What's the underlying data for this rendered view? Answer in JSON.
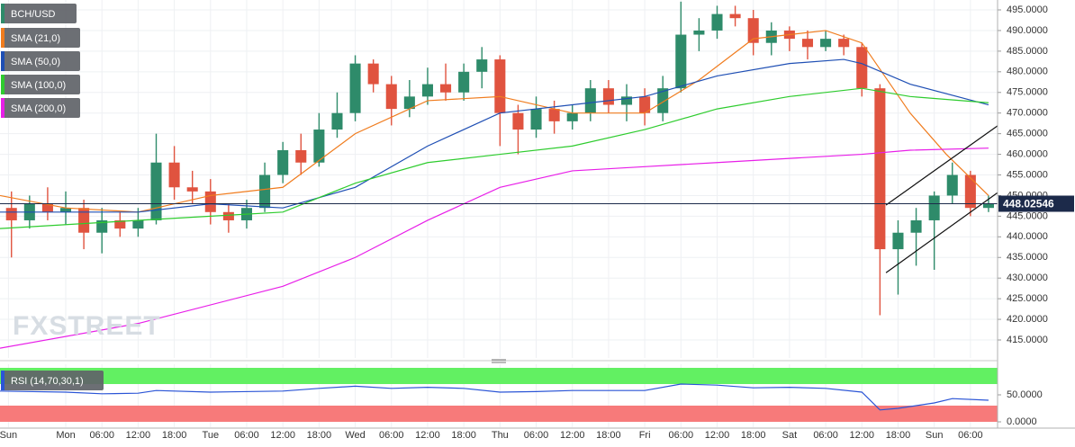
{
  "chart_data": {
    "type": "candlestick",
    "watermark": "FXSTREET",
    "candles": {
      "name": "BCH/USD",
      "up_color": "#2e8b6a",
      "down_color": "#e0533f",
      "x": [
        -9,
        -6,
        -3,
        0,
        3,
        6,
        9,
        12,
        15,
        18,
        21,
        24,
        27,
        30,
        33,
        36,
        39,
        42,
        45,
        48,
        51,
        54,
        57,
        60,
        63,
        66,
        69,
        72,
        75,
        78,
        81,
        84,
        87,
        90,
        93,
        96,
        99,
        102,
        105,
        108,
        111,
        114,
        117,
        120,
        123,
        126,
        129,
        132,
        135,
        138,
        141,
        144,
        147,
        150,
        153
      ],
      "open": [
        447,
        444,
        448,
        446,
        447,
        441,
        444,
        442,
        444,
        458,
        452,
        451,
        446,
        444,
        447,
        455,
        461,
        458,
        466,
        470,
        482,
        477,
        471,
        474,
        477,
        475,
        480,
        483,
        470,
        466,
        471,
        468,
        470,
        476,
        472,
        474,
        470,
        476,
        489,
        490,
        494,
        493,
        487,
        490,
        488,
        486,
        488,
        486,
        476,
        437,
        441,
        444,
        450,
        455,
        447
      ],
      "high": [
        451,
        450,
        452,
        451,
        449,
        447,
        446,
        447,
        465,
        462,
        456,
        454,
        448,
        449,
        458,
        463,
        465,
        470,
        475,
        484,
        483,
        479,
        478,
        481,
        482,
        482,
        486,
        484,
        472,
        474,
        473,
        472,
        478,
        478,
        477,
        476,
        479,
        497,
        493,
        496,
        496,
        495,
        492,
        491,
        490,
        490,
        489,
        487,
        477,
        444,
        447,
        451,
        458,
        456,
        450
      ],
      "low": [
        435,
        442,
        444,
        443,
        437,
        436,
        440,
        440,
        443,
        449,
        448,
        443,
        441,
        442,
        446,
        453,
        455,
        457,
        464,
        468,
        475,
        467,
        469,
        472,
        473,
        473,
        476,
        462,
        460,
        464,
        465,
        466,
        468,
        470,
        468,
        467,
        468,
        475,
        485,
        488,
        491,
        484,
        484,
        485,
        483,
        485,
        484,
        474,
        421,
        426,
        433,
        432,
        448,
        445,
        446
      ],
      "close": [
        444,
        448,
        446,
        447,
        441,
        444,
        442,
        444,
        458,
        452,
        451,
        446,
        444,
        447,
        455,
        461,
        458,
        466,
        470,
        482,
        477,
        471,
        474,
        477,
        475,
        480,
        483,
        470,
        466,
        471,
        468,
        470,
        476,
        472,
        474,
        470,
        476,
        489,
        490,
        494,
        493,
        487,
        490,
        488,
        486,
        488,
        486,
        476,
        437,
        441,
        444,
        450,
        455,
        447,
        448
      ]
    },
    "series": [
      {
        "name": "SMA (21,0)",
        "color": "#f07c1e",
        "x": [
          -10.9,
          0,
          12,
          24,
          36,
          48,
          60,
          72,
          84,
          96,
          105,
          114,
          126,
          132,
          140,
          146,
          153
        ],
        "values": [
          450,
          447,
          446,
          450,
          452,
          465,
          473,
          474,
          470,
          470,
          478,
          488,
          490,
          487,
          470,
          460,
          450
        ]
      },
      {
        "name": "SMA (50,0)",
        "color": "#1f4fb4",
        "x": [
          -10.9,
          12,
          24,
          36,
          48,
          60,
          72,
          84,
          96,
          108,
          120,
          129,
          132,
          140,
          153
        ],
        "values": [
          446,
          446,
          448,
          447,
          452,
          462,
          470,
          472,
          474,
          479,
          482,
          483,
          482,
          477,
          472
        ]
      },
      {
        "name": "SMA (100,0)",
        "color": "#2ecc2e",
        "x": [
          -10.9,
          12,
          24,
          36,
          48,
          60,
          72,
          84,
          96,
          108,
          120,
          132,
          140,
          153
        ],
        "values": [
          442,
          444,
          445,
          446,
          453,
          458,
          460,
          462,
          466,
          471,
          474,
          476,
          474,
          472.5
        ]
      },
      {
        "name": "SMA (200,0)",
        "color": "#e81ee8",
        "x": [
          -10.9,
          12,
          36,
          48,
          60,
          72,
          84,
          96,
          108,
          120,
          132,
          140,
          153
        ],
        "values": [
          413,
          419,
          428,
          435,
          444,
          452,
          456,
          457,
          458,
          459,
          460,
          461,
          461.5
        ]
      }
    ],
    "trendlines": [
      {
        "x": [
          136,
          154.5
        ],
        "values": [
          431.3,
          450.7
        ]
      },
      {
        "x": [
          136,
          154.5
        ],
        "values": [
          447.7,
          466.9
        ]
      }
    ],
    "last_price": 448.02546,
    "xlim": [
      -10.9,
      154.5
    ],
    "xticks": [
      {
        "value": -9.5,
        "label": "Sun"
      },
      {
        "value": 0,
        "label": "Mon"
      },
      {
        "value": 6,
        "label": "06:00"
      },
      {
        "value": 12,
        "label": "12:00"
      },
      {
        "value": 18,
        "label": "18:00"
      },
      {
        "value": 24,
        "label": "Tue"
      },
      {
        "value": 30,
        "label": "06:00"
      },
      {
        "value": 36,
        "label": "12:00"
      },
      {
        "value": 42,
        "label": "18:00"
      },
      {
        "value": 48,
        "label": "Wed"
      },
      {
        "value": 54,
        "label": "06:00"
      },
      {
        "value": 60,
        "label": "12:00"
      },
      {
        "value": 66,
        "label": "18:00"
      },
      {
        "value": 72,
        "label": "Thu"
      },
      {
        "value": 78,
        "label": "06:00"
      },
      {
        "value": 84,
        "label": "12:00"
      },
      {
        "value": 90,
        "label": "18:00"
      },
      {
        "value": 96,
        "label": "Fri"
      },
      {
        "value": 102,
        "label": "06:00"
      },
      {
        "value": 108,
        "label": "12:00"
      },
      {
        "value": 114,
        "label": "18:00"
      },
      {
        "value": 120,
        "label": "Sat"
      },
      {
        "value": 126,
        "label": "06:00"
      },
      {
        "value": 132,
        "label": "12:00"
      },
      {
        "value": 138,
        "label": "18:00"
      },
      {
        "value": 144,
        "label": "Sun"
      },
      {
        "value": 150,
        "label": "06:00"
      }
    ],
    "ylim": [
      410.64,
      497.4
    ],
    "yticks": [
      {
        "value": 415,
        "label": "415.0000"
      },
      {
        "value": 420,
        "label": "420.0000"
      },
      {
        "value": 425,
        "label": "425.0000"
      },
      {
        "value": 430,
        "label": "430.0000"
      },
      {
        "value": 435,
        "label": "435.0000"
      },
      {
        "value": 440,
        "label": "440.0000"
      },
      {
        "value": 445,
        "label": "445.0000"
      },
      {
        "value": 450,
        "label": "450.0000"
      },
      {
        "value": 455,
        "label": "455.0000"
      },
      {
        "value": 460,
        "label": "460.0000"
      },
      {
        "value": 465,
        "label": "465.0000"
      },
      {
        "value": 470,
        "label": "470.0000"
      },
      {
        "value": 475,
        "label": "475.0000"
      },
      {
        "value": 480,
        "label": "480.0000"
      },
      {
        "value": 485,
        "label": "485.0000"
      },
      {
        "value": 490,
        "label": "490.0000"
      },
      {
        "value": 495,
        "label": "495.0000"
      }
    ],
    "grid": true,
    "rsi": {
      "name": "RSI (14,70,30,1)",
      "color": "#2b55d6",
      "x": [
        -10.9,
        0,
        6,
        12,
        15,
        24,
        36,
        42,
        48,
        54,
        60,
        66,
        72,
        78,
        84,
        96,
        102,
        108,
        114,
        120,
        126,
        132,
        135,
        138,
        144,
        147,
        153
      ],
      "values": [
        57,
        55,
        52,
        53,
        58,
        55,
        57,
        62,
        66,
        62,
        64,
        62,
        55,
        56,
        58,
        58,
        70,
        68,
        63,
        64,
        62,
        55,
        22,
        25,
        35,
        43,
        40
      ],
      "ylim": [
        -10,
        106.7
      ],
      "yticks": [
        {
          "value": 0,
          "label": "0.0000"
        },
        {
          "value": 50,
          "label": "50.0000"
        }
      ],
      "bands": [
        {
          "from": 70,
          "to": 100,
          "color": "#62f062"
        },
        {
          "from": 0,
          "to": 30,
          "color": "#f77a7a"
        }
      ]
    }
  }
}
